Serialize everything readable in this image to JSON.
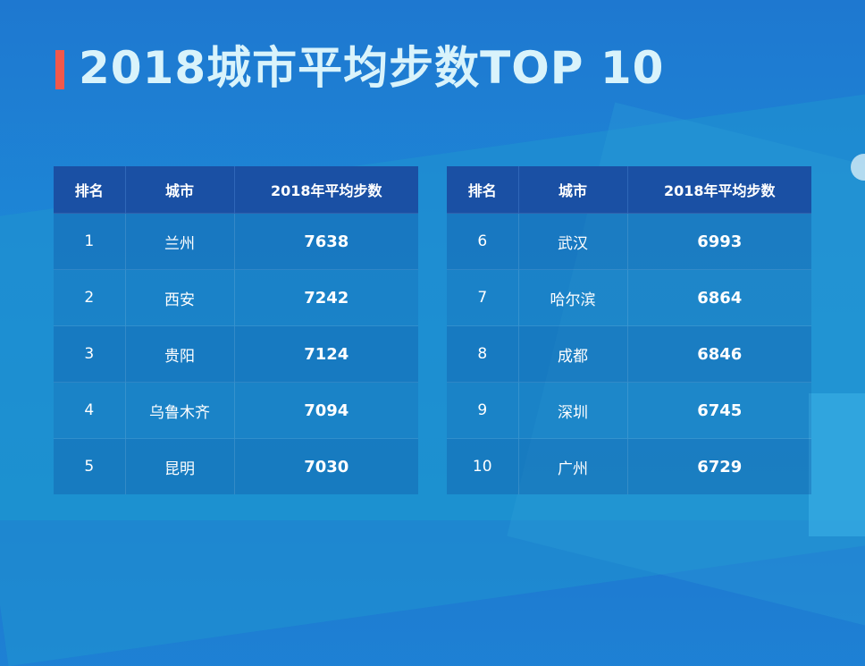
{
  "title": "2018城市平均步数TOP 10",
  "chart_data": {
    "type": "table",
    "title": "2018城市平均步数TOP 10",
    "columns": [
      "排名",
      "城市",
      "2018年平均步数"
    ],
    "rows": [
      {
        "rank": "1",
        "city": "兰州",
        "steps": 7638
      },
      {
        "rank": "2",
        "city": "西安",
        "steps": 7242
      },
      {
        "rank": "3",
        "city": "贵阳",
        "steps": 7124
      },
      {
        "rank": "4",
        "city": "乌鲁木齐",
        "steps": 7094
      },
      {
        "rank": "5",
        "city": "昆明",
        "steps": 7030
      },
      {
        "rank": "6",
        "city": "武汉",
        "steps": 6993
      },
      {
        "rank": "7",
        "city": "哈尔滨",
        "steps": 6864
      },
      {
        "rank": "8",
        "city": "成都",
        "steps": 6846
      },
      {
        "rank": "9",
        "city": "深圳",
        "steps": 6745
      },
      {
        "rank": "10",
        "city": "广州",
        "steps": 6729
      }
    ]
  },
  "colors": {
    "accent": "#f0584c",
    "header_bg": "#1a50a4",
    "title_text": "#d9f3fb"
  }
}
